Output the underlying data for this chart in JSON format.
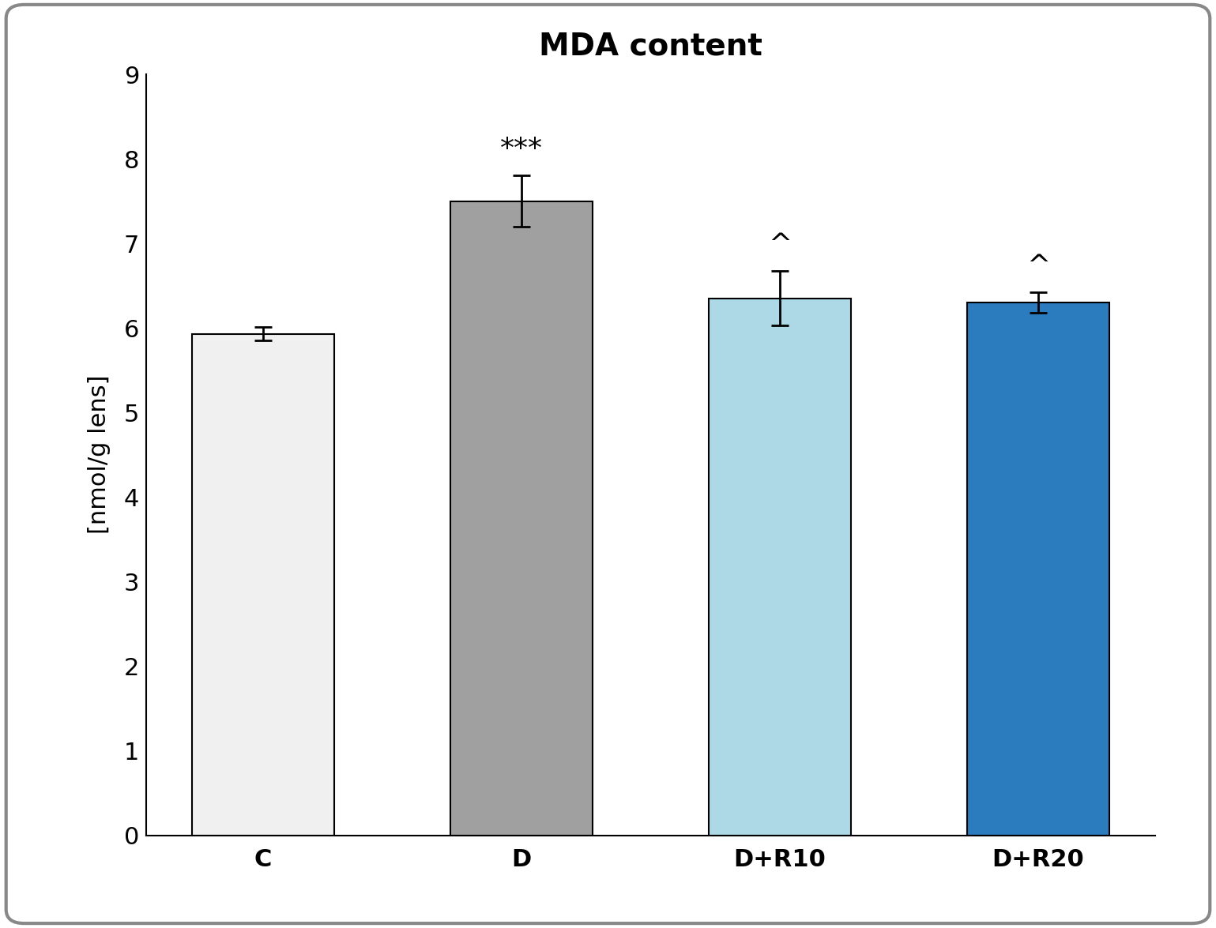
{
  "title": "MDA content",
  "categories": [
    "C",
    "D",
    "D+R10",
    "D+R20"
  ],
  "values": [
    5.93,
    7.5,
    6.35,
    6.3
  ],
  "errors": [
    0.08,
    0.3,
    0.32,
    0.12
  ],
  "bar_colors": [
    "#f0f0f0",
    "#a0a0a0",
    "#add8e6",
    "#2b7bbf"
  ],
  "bar_edgecolors": [
    "#000000",
    "#000000",
    "#000000",
    "#000000"
  ],
  "ylabel": "[nmol/g lens]",
  "ylim": [
    0,
    9
  ],
  "yticks": [
    0,
    1,
    2,
    3,
    4,
    5,
    6,
    7,
    8,
    9
  ],
  "annotations": [
    "",
    "***",
    "^",
    "^"
  ],
  "title_fontsize": 28,
  "label_fontsize": 22,
  "tick_fontsize": 22,
  "annot_fontsize": 26,
  "bar_width": 0.55,
  "background_color": "#ffffff",
  "border_color": "#888888",
  "figwidth": 15.39,
  "figheight": 11.75,
  "dpi": 100
}
